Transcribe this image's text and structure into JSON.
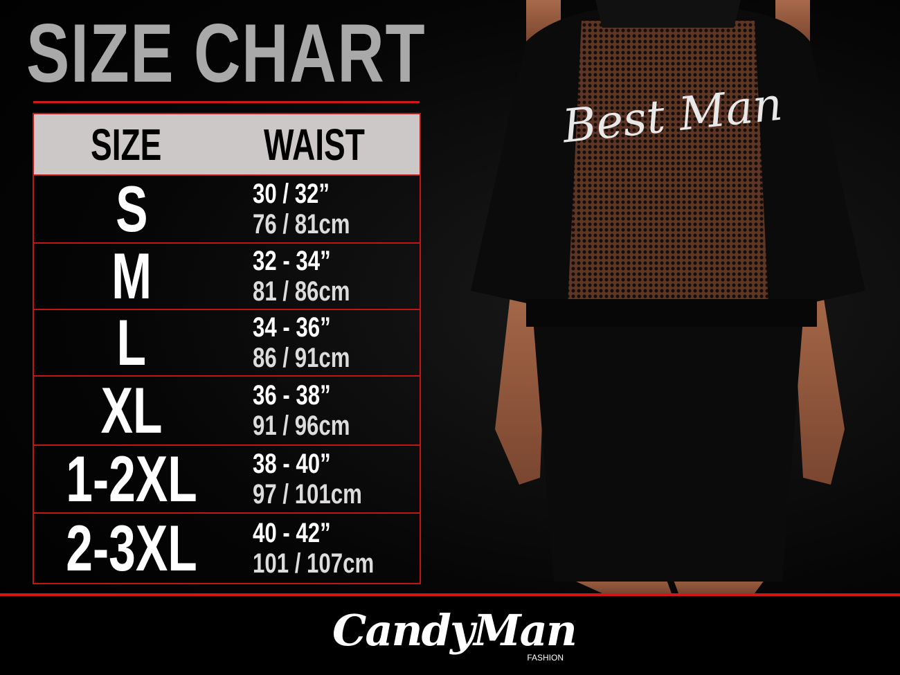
{
  "title": "SIZE CHART",
  "table": {
    "headers": {
      "size": "SIZE",
      "waist": "WAIST"
    },
    "rows": [
      {
        "size": "S",
        "inches": "30 / 32”",
        "cm": "76 / 81cm"
      },
      {
        "size": "M",
        "inches": "32 - 34”",
        "cm": "81 / 86cm"
      },
      {
        "size": "L",
        "inches": "34 - 36”",
        "cm": "86 / 91cm"
      },
      {
        "size": "XL",
        "inches": "36 - 38”",
        "cm": "91 / 96cm"
      },
      {
        "size": "1-2XL",
        "inches": "38 - 40”",
        "cm": "97 / 101cm"
      },
      {
        "size": "2-3XL",
        "inches": "40 - 42”",
        "cm": "101 / 107cm"
      }
    ]
  },
  "product_print": "Best Man",
  "logo": {
    "brand": "CandyMan",
    "sub": "FASHION"
  },
  "colors": {
    "accent": "#d41515",
    "header_bg": "#ccc8c8",
    "title": "#a9a9a9"
  }
}
